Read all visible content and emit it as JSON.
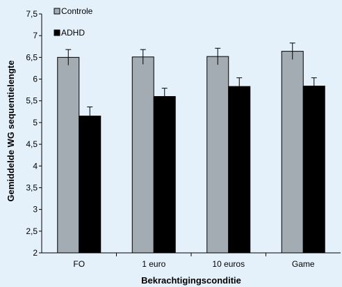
{
  "chart_data": {
    "type": "bar",
    "categories": [
      "FO",
      "1 euro",
      "10 euros",
      "Game"
    ],
    "series": [
      {
        "name": "Controle",
        "color": "#a3acb3",
        "values": [
          6.5,
          6.51,
          6.52,
          6.64
        ],
        "errors": [
          0.18,
          0.17,
          0.19,
          0.19
        ]
      },
      {
        "name": "ADHD",
        "color": "#000000",
        "values": [
          5.15,
          5.6,
          5.83,
          5.84
        ],
        "errors": [
          0.21,
          0.19,
          0.2,
          0.19
        ]
      }
    ],
    "xlabel": "Bekrachtigingsconditie",
    "ylabel": "Gemiddelde WG sequentielengte",
    "ylim": [
      2,
      7.5
    ],
    "yticks": [
      "2",
      "2,5",
      "3",
      "3,5",
      "4",
      "4,5",
      "5",
      "5,5",
      "6",
      "6,5",
      "7",
      "7,5"
    ],
    "grid": false,
    "legend_position": "top-left"
  }
}
